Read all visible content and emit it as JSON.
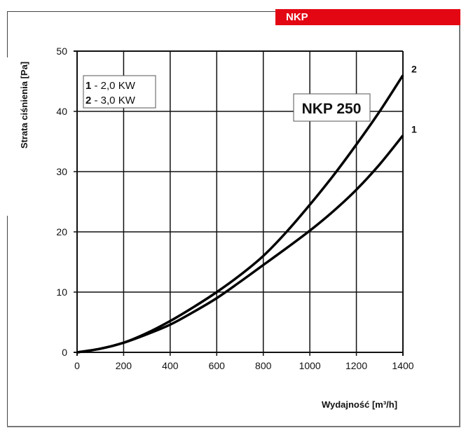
{
  "header": {
    "badge": "NKP"
  },
  "chart_data": {
    "type": "line",
    "title": "NKP 250",
    "xlabel": "Wydajność [m³/h]",
    "ylabel": "Strata ciśnienia [Pa]",
    "xlim": [
      0,
      1400
    ],
    "ylim": [
      0,
      50
    ],
    "xticks": [
      0,
      200,
      400,
      600,
      800,
      1000,
      1200,
      1400
    ],
    "yticks": [
      0,
      10,
      20,
      30,
      40,
      50
    ],
    "grid": true,
    "legend": {
      "position": "top-left",
      "entries": [
        {
          "key": "1",
          "text": " - 2,0 KW"
        },
        {
          "key": "2",
          "text": " - 3,0 KW"
        }
      ]
    },
    "series": [
      {
        "name": "1",
        "x": [
          0,
          100,
          200,
          300,
          400,
          500,
          600,
          700,
          800,
          900,
          1000,
          1100,
          1200,
          1300,
          1400
        ],
        "y": [
          0,
          0.6,
          1.6,
          3.0,
          4.6,
          6.7,
          9.0,
          11.7,
          14.5,
          17.3,
          20.2,
          23.4,
          27.0,
          31.2,
          36.0
        ]
      },
      {
        "name": "2",
        "x": [
          0,
          100,
          200,
          300,
          400,
          500,
          600,
          700,
          800,
          900,
          1000,
          1100,
          1200,
          1300,
          1400
        ],
        "y": [
          0,
          0.6,
          1.6,
          3.2,
          5.2,
          7.5,
          10.0,
          12.8,
          16.0,
          20.0,
          24.5,
          29.3,
          34.5,
          40.0,
          46.0
        ]
      }
    ]
  }
}
